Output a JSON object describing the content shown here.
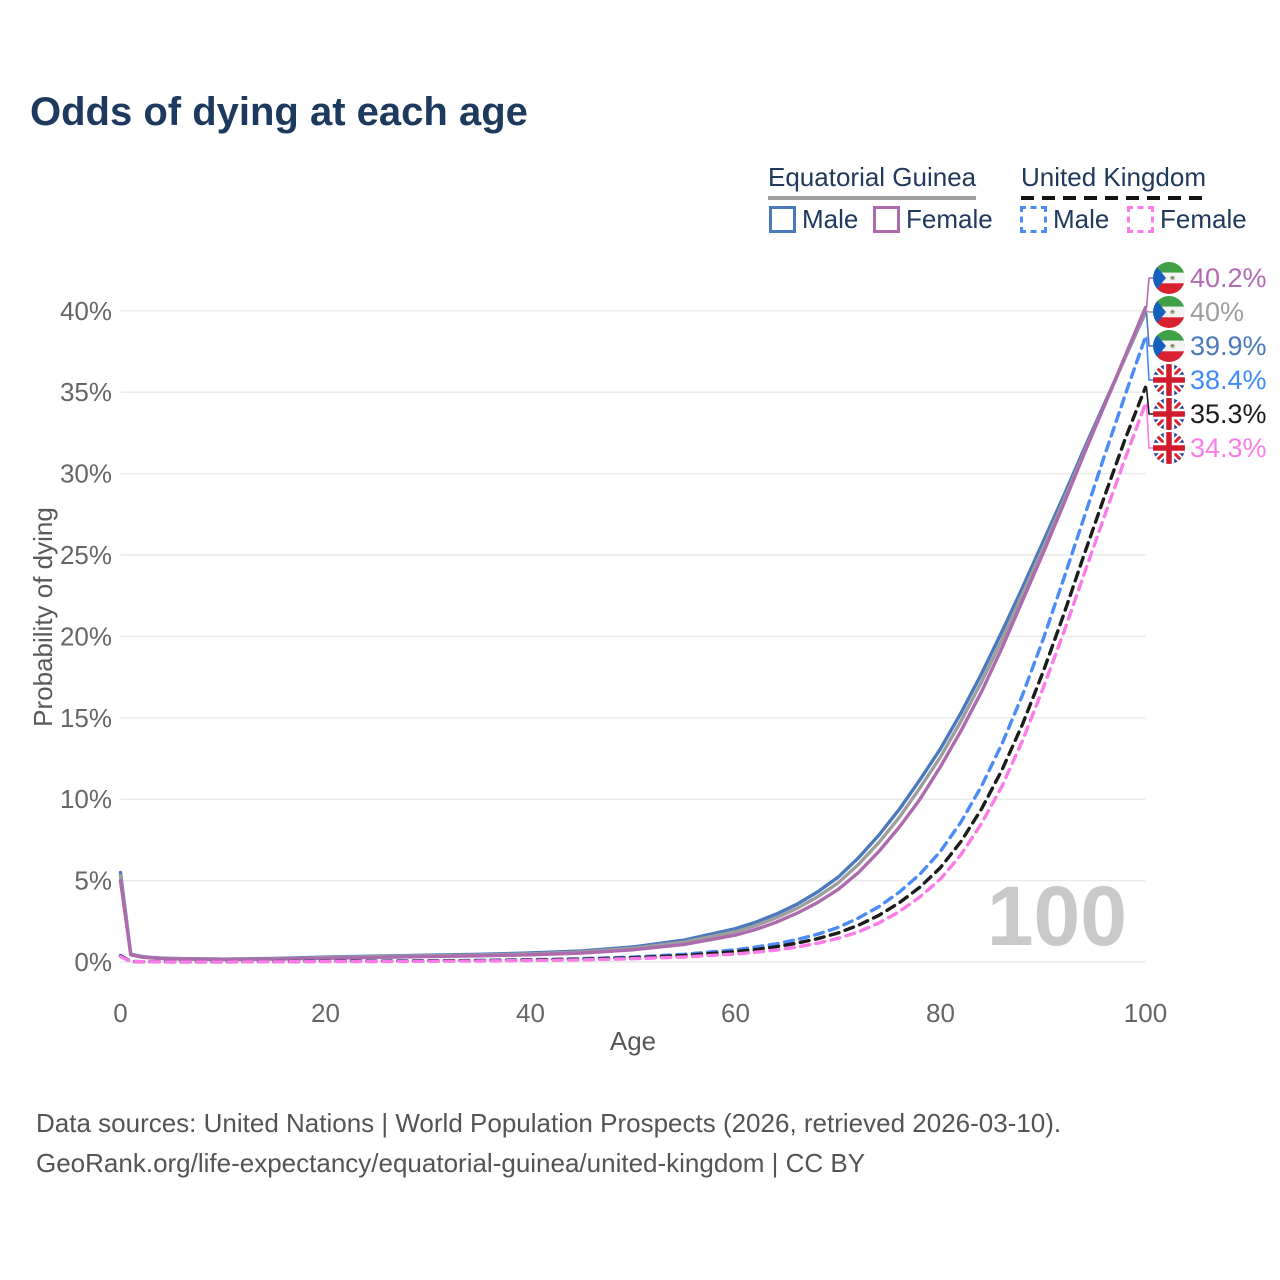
{
  "title": "Odds of dying at each age",
  "legend": {
    "groups": [
      {
        "label": "Equatorial Guinea",
        "underline_style": "solid",
        "underline_color": "#a0a0a0"
      },
      {
        "label": "United Kingdom",
        "underline_style": "dashed",
        "underline_color": "#141414"
      }
    ],
    "items": [
      {
        "label": "Male",
        "color": "#4a79bd",
        "dash": false
      },
      {
        "label": "Female",
        "color": "#ad6bae",
        "dash": false
      },
      {
        "label": "Male",
        "color": "#4b8cf7",
        "dash": true
      },
      {
        "label": "Female",
        "color": "#fb7ce8",
        "dash": true
      }
    ]
  },
  "chart_data": {
    "type": "line",
    "title": "Odds of dying at each age",
    "xlabel": "Age",
    "ylabel": "Probability of dying",
    "xlim": [
      0,
      100
    ],
    "ylim": [
      0,
      42
    ],
    "grid": true,
    "legend_position": "top-right",
    "watermark": "100",
    "x_tick_values": [
      0,
      20,
      40,
      60,
      80,
      100
    ],
    "x_ticks": [
      "0",
      "20",
      "40",
      "60",
      "80",
      "100"
    ],
    "y_tick_values": [
      0,
      5,
      10,
      15,
      20,
      25,
      30,
      35,
      40
    ],
    "y_ticks": [
      "0%",
      "5%",
      "10%",
      "15%",
      "20%",
      "25%",
      "30%",
      "35%",
      "40%"
    ],
    "x": [
      0,
      1,
      2,
      3,
      4,
      5,
      10,
      15,
      20,
      25,
      30,
      35,
      40,
      45,
      50,
      55,
      60,
      62,
      64,
      66,
      68,
      70,
      72,
      74,
      76,
      78,
      80,
      82,
      84,
      86,
      88,
      90,
      92,
      94,
      96,
      98,
      100
    ],
    "series": [
      {
        "name": "Equatorial Guinea Male",
        "country": "Equatorial Guinea",
        "sex": "Male",
        "color": "#4a79bd",
        "dash": false,
        "flag": "gq",
        "end_label": "39.9%",
        "label_color": "#4a79bd",
        "label_row": 2,
        "values": [
          5.5,
          0.48,
          0.35,
          0.28,
          0.24,
          0.22,
          0.18,
          0.22,
          0.3,
          0.36,
          0.42,
          0.47,
          0.55,
          0.68,
          0.92,
          1.35,
          2.05,
          2.45,
          2.95,
          3.55,
          4.3,
          5.2,
          6.4,
          7.8,
          9.4,
          11.2,
          13.1,
          15.3,
          17.7,
          20.3,
          23.0,
          25.8,
          28.6,
          31.5,
          34.3,
          37.1,
          39.9
        ]
      },
      {
        "name": "Equatorial Guinea Both sexes",
        "country": "Equatorial Guinea",
        "sex": "Both",
        "color": "#9e9e9e",
        "dash": false,
        "flag": "gq",
        "end_label": "40%",
        "label_color": "#9e9e9e",
        "label_row": 1,
        "values": [
          5.3,
          0.46,
          0.33,
          0.27,
          0.23,
          0.21,
          0.17,
          0.2,
          0.27,
          0.33,
          0.38,
          0.43,
          0.5,
          0.62,
          0.84,
          1.22,
          1.86,
          2.24,
          2.72,
          3.3,
          4.0,
          4.85,
          6.0,
          7.35,
          8.9,
          10.7,
          12.6,
          14.8,
          17.2,
          19.8,
          22.6,
          25.4,
          28.3,
          31.3,
          34.2,
          37.1,
          40.0
        ]
      },
      {
        "name": "Equatorial Guinea Female",
        "country": "Equatorial Guinea",
        "sex": "Female",
        "color": "#ad6bae",
        "dash": false,
        "flag": "gq",
        "end_label": "40.2%",
        "label_color": "#b46ab4",
        "label_row": 0,
        "values": [
          5.0,
          0.44,
          0.31,
          0.25,
          0.21,
          0.19,
          0.15,
          0.18,
          0.23,
          0.28,
          0.33,
          0.38,
          0.44,
          0.55,
          0.75,
          1.08,
          1.65,
          2.0,
          2.45,
          3.0,
          3.65,
          4.45,
          5.5,
          6.8,
          8.3,
          10.0,
          12.0,
          14.2,
          16.6,
          19.3,
          22.2,
          25.1,
          28.1,
          31.2,
          34.2,
          37.2,
          40.2
        ]
      },
      {
        "name": "United Kingdom Male",
        "country": "United Kingdom",
        "sex": "Male",
        "color": "#4b8cf7",
        "dash": true,
        "flag": "gb",
        "end_label": "38.4%",
        "label_color": "#3f8afc",
        "label_row": 3,
        "values": [
          0.4,
          0.03,
          0.02,
          0.015,
          0.012,
          0.01,
          0.01,
          0.02,
          0.05,
          0.06,
          0.08,
          0.1,
          0.14,
          0.2,
          0.3,
          0.47,
          0.75,
          0.92,
          1.12,
          1.38,
          1.7,
          2.12,
          2.7,
          3.4,
          4.3,
          5.4,
          6.8,
          8.6,
          10.8,
          13.4,
          16.4,
          19.8,
          23.5,
          27.3,
          31.1,
          34.8,
          38.4
        ]
      },
      {
        "name": "United Kingdom Both sexes",
        "country": "United Kingdom",
        "sex": "Both",
        "color": "#1c1c1c",
        "dash": true,
        "flag": "gb",
        "end_label": "35.3%",
        "label_color": "#1c1c1c",
        "label_row": 4,
        "values": [
          0.37,
          0.028,
          0.018,
          0.013,
          0.01,
          0.009,
          0.009,
          0.017,
          0.04,
          0.05,
          0.065,
          0.085,
          0.12,
          0.17,
          0.26,
          0.4,
          0.63,
          0.77,
          0.94,
          1.16,
          1.43,
          1.78,
          2.26,
          2.87,
          3.65,
          4.6,
          5.8,
          7.4,
          9.4,
          11.8,
          14.6,
          17.8,
          21.3,
          25.0,
          28.6,
          32.1,
          35.3
        ]
      },
      {
        "name": "United Kingdom Female",
        "country": "United Kingdom",
        "sex": "Female",
        "color": "#fb7ce8",
        "dash": true,
        "flag": "gb",
        "end_label": "34.3%",
        "label_color": "#fb7ce8",
        "label_row": 5,
        "values": [
          0.34,
          0.025,
          0.016,
          0.011,
          0.009,
          0.008,
          0.008,
          0.013,
          0.025,
          0.032,
          0.045,
          0.06,
          0.09,
          0.13,
          0.2,
          0.31,
          0.49,
          0.6,
          0.74,
          0.92,
          1.15,
          1.45,
          1.85,
          2.4,
          3.1,
          4.0,
          5.1,
          6.6,
          8.5,
          10.8,
          13.6,
          16.8,
          20.2,
          23.8,
          27.4,
          30.9,
          34.3
        ]
      }
    ]
  },
  "footer": {
    "line1": "Data sources: United Nations | World Population Prospects (2026, retrieved 2026-03-10).",
    "line2": "GeoRank.org/life-expectancy/equatorial-guinea/united-kingdom | CC BY"
  },
  "colors": {
    "title": "#1d3a5e",
    "axis_text": "#666666",
    "gridline": "#e9e9e9",
    "watermark": "#c9c9c9",
    "footer_text": "#545454"
  }
}
